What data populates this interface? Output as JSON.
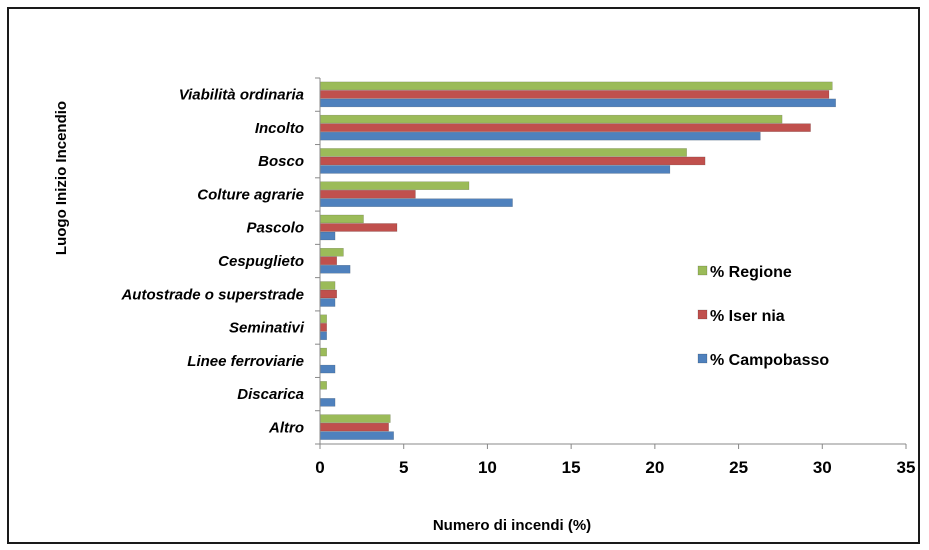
{
  "chart_data": {
    "type": "bar",
    "orientation": "horizontal",
    "categories": [
      "Viabilità ordinaria",
      "Incolto",
      "Bosco",
      "Colture agrarie",
      "Pascolo",
      "Cespuglieto",
      "Autostrade o superstrade",
      "Seminativi",
      "Linee ferroviarie",
      "Discarica",
      "Altro"
    ],
    "series": [
      {
        "name": "% Regione",
        "color": "#9bbb59",
        "values": [
          30.6,
          27.6,
          21.9,
          8.9,
          2.6,
          1.4,
          0.9,
          0.4,
          0.4,
          0.4,
          4.2
        ]
      },
      {
        "name": "% Iser nia",
        "color": "#c0504d",
        "values": [
          30.4,
          29.3,
          23.0,
          5.7,
          4.6,
          1.0,
          1.0,
          0.4,
          0.0,
          0.0,
          4.1
        ]
      },
      {
        "name": "% Campobasso",
        "color": "#4f81bd",
        "values": [
          30.8,
          26.3,
          20.9,
          11.5,
          0.9,
          1.8,
          0.9,
          0.4,
          0.9,
          0.9,
          4.4
        ]
      }
    ],
    "x_ticks": [
      "0",
      "5",
      "10",
      "15",
      "20",
      "25",
      "30",
      "35"
    ],
    "xlim": [
      0,
      35
    ],
    "xlabel": "Numero di incendi (%)",
    "ylabel": "Luogo Inizio Incendio",
    "grid": false,
    "legend_position": "right"
  }
}
